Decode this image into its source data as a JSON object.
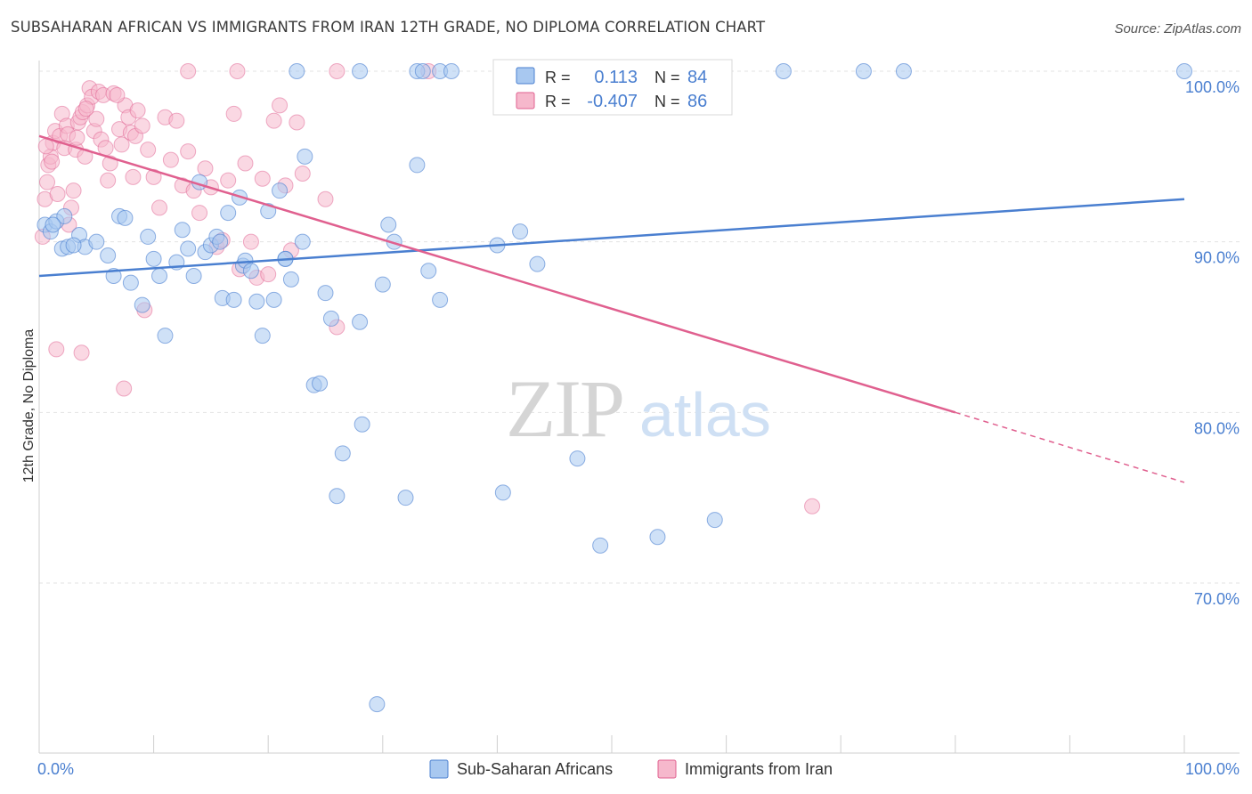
{
  "title": "SUBSAHARAN AFRICAN VS IMMIGRANTS FROM IRAN 12TH GRADE, NO DIPLOMA CORRELATION CHART",
  "source": "Source: ZipAtlas.com",
  "watermark": {
    "zip": "ZIP",
    "atlas": "atlas"
  },
  "legend_box": {
    "rows": [
      {
        "r_label": "R =",
        "r_value": "0.113",
        "n_label": "N =",
        "n_value": "84",
        "color": "#a8c8f0"
      },
      {
        "r_label": "R =",
        "r_value": "-0.407",
        "n_label": "N =",
        "n_value": "86",
        "color": "#f6b8cc"
      }
    ]
  },
  "bottom_legend": [
    {
      "label": "Sub-Saharan Africans",
      "color": "#a8c8f0"
    },
    {
      "label": "Immigrants from Iran",
      "color": "#f6b8cc"
    }
  ],
  "chart_data": {
    "type": "scatter",
    "ylabel": "12th Grade, No Diploma",
    "xlabel": "",
    "xlim": [
      0,
      100
    ],
    "ylim": [
      60,
      100
    ],
    "x_tick_labels": [
      "0.0%",
      "100.0%"
    ],
    "y_tick_labels": [
      "100.0%",
      "90.0%",
      "80.0%",
      "70.0%"
    ],
    "y_ticks": [
      100,
      90,
      80,
      70
    ],
    "colors": {
      "blue": "#4a7fd0",
      "blue_fill": "#a8c8f0",
      "pink": "#e0608f",
      "pink_fill": "#f6b8cc",
      "axis_text": "#4a7fd0"
    },
    "series": [
      {
        "name": "Sub-Saharan Africans",
        "trend": {
          "x": [
            0,
            100
          ],
          "y": [
            88.0,
            92.5
          ]
        },
        "points": [
          [
            0.5,
            91.0
          ],
          [
            1.0,
            90.6
          ],
          [
            1.5,
            91.2
          ],
          [
            2.0,
            89.6
          ],
          [
            2.5,
            89.7
          ],
          [
            3.5,
            90.4
          ],
          [
            4.0,
            89.7
          ],
          [
            5.0,
            90.0
          ],
          [
            6.0,
            89.2
          ],
          [
            6.5,
            88.0
          ],
          [
            7.0,
            91.5
          ],
          [
            7.5,
            91.4
          ],
          [
            8.0,
            87.6
          ],
          [
            9.0,
            86.3
          ],
          [
            9.5,
            90.3
          ],
          [
            10.0,
            89.0
          ],
          [
            10.5,
            88.0
          ],
          [
            11.0,
            84.5
          ],
          [
            12.0,
            88.8
          ],
          [
            12.5,
            90.7
          ],
          [
            13.0,
            89.6
          ],
          [
            13.5,
            88.0
          ],
          [
            14.0,
            93.5
          ],
          [
            14.5,
            89.4
          ],
          [
            15.0,
            89.8
          ],
          [
            15.5,
            90.3
          ],
          [
            15.8,
            90.0
          ],
          [
            16.0,
            86.7
          ],
          [
            16.5,
            91.7
          ],
          [
            17.0,
            86.6
          ],
          [
            17.5,
            92.6
          ],
          [
            17.8,
            88.6
          ],
          [
            18.0,
            88.9
          ],
          [
            18.5,
            88.3
          ],
          [
            19.0,
            86.5
          ],
          [
            19.5,
            84.5
          ],
          [
            20.0,
            91.8
          ],
          [
            20.5,
            86.6
          ],
          [
            21.0,
            93.0
          ],
          [
            21.5,
            89.0
          ],
          [
            22.0,
            87.8
          ],
          [
            23.0,
            90.0
          ],
          [
            23.2,
            95.0
          ],
          [
            24.0,
            81.6
          ],
          [
            24.5,
            81.7
          ],
          [
            25.0,
            87.0
          ],
          [
            25.5,
            85.5
          ],
          [
            26.0,
            75.1
          ],
          [
            26.5,
            77.6
          ],
          [
            28.0,
            85.3
          ],
          [
            28.2,
            79.3
          ],
          [
            29.5,
            62.9
          ],
          [
            30.0,
            87.5
          ],
          [
            30.5,
            91.0
          ],
          [
            31.0,
            90.0
          ],
          [
            32.0,
            75.0
          ],
          [
            33.0,
            94.5
          ],
          [
            34.0,
            88.3
          ],
          [
            35.0,
            86.6
          ],
          [
            40.0,
            89.8
          ],
          [
            40.5,
            75.3
          ],
          [
            42.0,
            90.6
          ],
          [
            43.5,
            88.7
          ],
          [
            47.0,
            77.3
          ],
          [
            49.0,
            72.2
          ],
          [
            54.0,
            72.7
          ],
          [
            59.0,
            73.7
          ],
          [
            22.5,
            100.0
          ],
          [
            28.0,
            100.0
          ],
          [
            33.0,
            100.0
          ],
          [
            33.5,
            100.0
          ],
          [
            35.0,
            100.0
          ],
          [
            36.0,
            100.0
          ],
          [
            46.0,
            100.0
          ],
          [
            55.0,
            100.0
          ],
          [
            65.0,
            100.0
          ],
          [
            72.0,
            100.0
          ],
          [
            75.5,
            100.0
          ],
          [
            100.0,
            100.0
          ],
          [
            58.0,
            99.4
          ],
          [
            21.5,
            89.0
          ],
          [
            2.2,
            91.5
          ],
          [
            1.2,
            91.0
          ],
          [
            3.0,
            89.8
          ]
        ]
      },
      {
        "name": "Immigrants from Iran",
        "trend": {
          "x": [
            0,
            80
          ],
          "y": [
            96.2,
            80.0
          ]
        },
        "trend_dashed": {
          "x": [
            80,
            100
          ],
          "y": [
            80.0,
            75.9
          ]
        },
        "points": [
          [
            0.3,
            90.3
          ],
          [
            0.5,
            92.5
          ],
          [
            0.7,
            93.5
          ],
          [
            0.8,
            94.5
          ],
          [
            1.0,
            95.0
          ],
          [
            1.2,
            95.8
          ],
          [
            1.4,
            96.5
          ],
          [
            1.6,
            92.8
          ],
          [
            1.8,
            96.2
          ],
          [
            2.0,
            97.5
          ],
          [
            2.2,
            95.5
          ],
          [
            2.4,
            96.8
          ],
          [
            2.6,
            91.0
          ],
          [
            2.8,
            92.0
          ],
          [
            3.0,
            93.0
          ],
          [
            3.2,
            95.4
          ],
          [
            3.4,
            97.0
          ],
          [
            3.6,
            97.3
          ],
          [
            3.8,
            97.6
          ],
          [
            4.0,
            95.0
          ],
          [
            4.2,
            98.0
          ],
          [
            4.4,
            99.0
          ],
          [
            4.6,
            98.5
          ],
          [
            4.8,
            96.5
          ],
          [
            5.0,
            97.2
          ],
          [
            5.2,
            98.8
          ],
          [
            5.4,
            96.0
          ],
          [
            5.6,
            98.6
          ],
          [
            5.8,
            95.5
          ],
          [
            6.0,
            93.6
          ],
          [
            6.2,
            94.6
          ],
          [
            6.5,
            98.7
          ],
          [
            7.0,
            96.6
          ],
          [
            7.2,
            95.7
          ],
          [
            7.5,
            98.0
          ],
          [
            7.8,
            97.3
          ],
          [
            8.0,
            96.4
          ],
          [
            8.2,
            93.8
          ],
          [
            8.4,
            96.2
          ],
          [
            8.6,
            97.7
          ],
          [
            9.0,
            96.8
          ],
          [
            9.5,
            95.4
          ],
          [
            10.0,
            93.8
          ],
          [
            10.5,
            92.0
          ],
          [
            11.0,
            97.3
          ],
          [
            11.5,
            94.8
          ],
          [
            12.0,
            97.1
          ],
          [
            12.5,
            93.3
          ],
          [
            13.0,
            95.3
          ],
          [
            13.5,
            93.0
          ],
          [
            14.0,
            91.7
          ],
          [
            14.5,
            94.3
          ],
          [
            15.0,
            93.2
          ],
          [
            15.5,
            89.7
          ],
          [
            16.0,
            90.1
          ],
          [
            16.5,
            93.6
          ],
          [
            17.0,
            97.5
          ],
          [
            17.5,
            88.4
          ],
          [
            18.0,
            94.6
          ],
          [
            18.5,
            90.0
          ],
          [
            19.0,
            87.9
          ],
          [
            19.5,
            93.7
          ],
          [
            20.0,
            88.1
          ],
          [
            20.5,
            97.1
          ],
          [
            21.0,
            98.0
          ],
          [
            21.5,
            93.3
          ],
          [
            22.0,
            89.5
          ],
          [
            22.5,
            97.0
          ],
          [
            23.0,
            94.0
          ],
          [
            25.0,
            92.5
          ],
          [
            26.0,
            85.0
          ],
          [
            3.7,
            83.5
          ],
          [
            1.5,
            83.7
          ],
          [
            7.4,
            81.4
          ],
          [
            9.2,
            86.0
          ],
          [
            13.0,
            100.0
          ],
          [
            17.3,
            100.0
          ],
          [
            26.0,
            100.0
          ],
          [
            34.0,
            100.0
          ],
          [
            67.5,
            74.5
          ],
          [
            6.8,
            98.6
          ],
          [
            2.5,
            96.3
          ],
          [
            1.1,
            94.7
          ],
          [
            0.6,
            95.6
          ],
          [
            4.1,
            97.8
          ],
          [
            3.3,
            96.1
          ]
        ]
      }
    ]
  }
}
